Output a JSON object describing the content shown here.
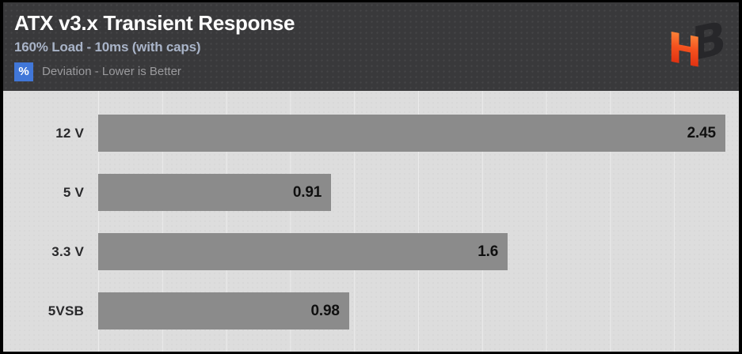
{
  "header": {
    "title": "ATX v3.x Transient Response",
    "subtitle": "160% Load - 10ms (with caps)",
    "legend_symbol": "%",
    "legend_label": "Deviation - Lower is Better",
    "logo_letters": {
      "h": "H",
      "b": "B"
    }
  },
  "colors": {
    "frame": "#000000",
    "header_bg": "#39393b",
    "title_text": "#ffffff",
    "subtitle_text": "#a9b4c8",
    "legend_badge": "#4177d8",
    "legend_text": "#9b9b9e",
    "chart_bg": "#dddddd",
    "gridline": "#ebebeb",
    "bar": "#8b8b8b",
    "value_text": "#101010",
    "category_text": "#29292b",
    "logo_orange_top": "#ff9a45",
    "logo_orange_bottom": "#d41f0a",
    "logo_dark": "#27272a"
  },
  "chart_data": {
    "type": "bar",
    "orientation": "horizontal",
    "title": "ATX v3.x Transient Response",
    "subtitle": "160% Load - 10ms (with caps)",
    "unit": "%",
    "note": "Deviation - Lower is Better",
    "categories": [
      "12 V",
      "5 V",
      "3.3 V",
      "5VSB"
    ],
    "values": [
      2.45,
      0.91,
      1.6,
      0.98
    ],
    "value_labels": [
      "2.45",
      "0.91",
      "1.6",
      "0.98"
    ],
    "xlim": [
      0,
      2.5
    ],
    "gridline_step": 0.25,
    "grid": true,
    "legend_position": "top-left",
    "bar_color": "#8b8b8b"
  }
}
